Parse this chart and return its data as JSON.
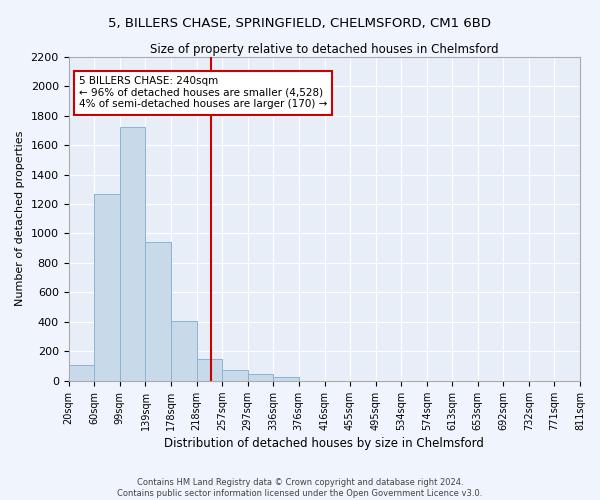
{
  "title": "5, BILLERS CHASE, SPRINGFIELD, CHELMSFORD, CM1 6BD",
  "subtitle": "Size of property relative to detached houses in Chelmsford",
  "xlabel": "Distribution of detached houses by size in Chelmsford",
  "ylabel": "Number of detached properties",
  "bar_color": "#c8daea",
  "bar_edge_color": "#8ab4d4",
  "background_color": "#e8eef8",
  "fig_background_color": "#f0f4fc",
  "grid_color": "#ffffff",
  "vline_color": "#cc0000",
  "vline_x": 240,
  "annotation_text": "5 BILLERS CHASE: 240sqm\n← 96% of detached houses are smaller (4,528)\n4% of semi-detached houses are larger (170) →",
  "annotation_box_edgecolor": "#cc0000",
  "bin_edges": [
    20,
    60,
    99,
    139,
    178,
    218,
    257,
    297,
    336,
    376,
    416,
    455,
    495,
    534,
    574,
    613,
    653,
    692,
    732,
    771,
    811
  ],
  "bin_values": [
    110,
    1265,
    1725,
    940,
    405,
    150,
    75,
    45,
    25,
    0,
    0,
    0,
    0,
    0,
    0,
    0,
    0,
    0,
    0,
    0
  ],
  "ylim": [
    0,
    2200
  ],
  "yticks": [
    0,
    200,
    400,
    600,
    800,
    1000,
    1200,
    1400,
    1600,
    1800,
    2000,
    2200
  ],
  "footnote": "Contains HM Land Registry data © Crown copyright and database right 2024.\nContains public sector information licensed under the Open Government Licence v3.0.",
  "tick_labels": [
    "20sqm",
    "60sqm",
    "99sqm",
    "139sqm",
    "178sqm",
    "218sqm",
    "257sqm",
    "297sqm",
    "336sqm",
    "376sqm",
    "416sqm",
    "455sqm",
    "495sqm",
    "534sqm",
    "574sqm",
    "613sqm",
    "653sqm",
    "692sqm",
    "732sqm",
    "771sqm",
    "811sqm"
  ]
}
